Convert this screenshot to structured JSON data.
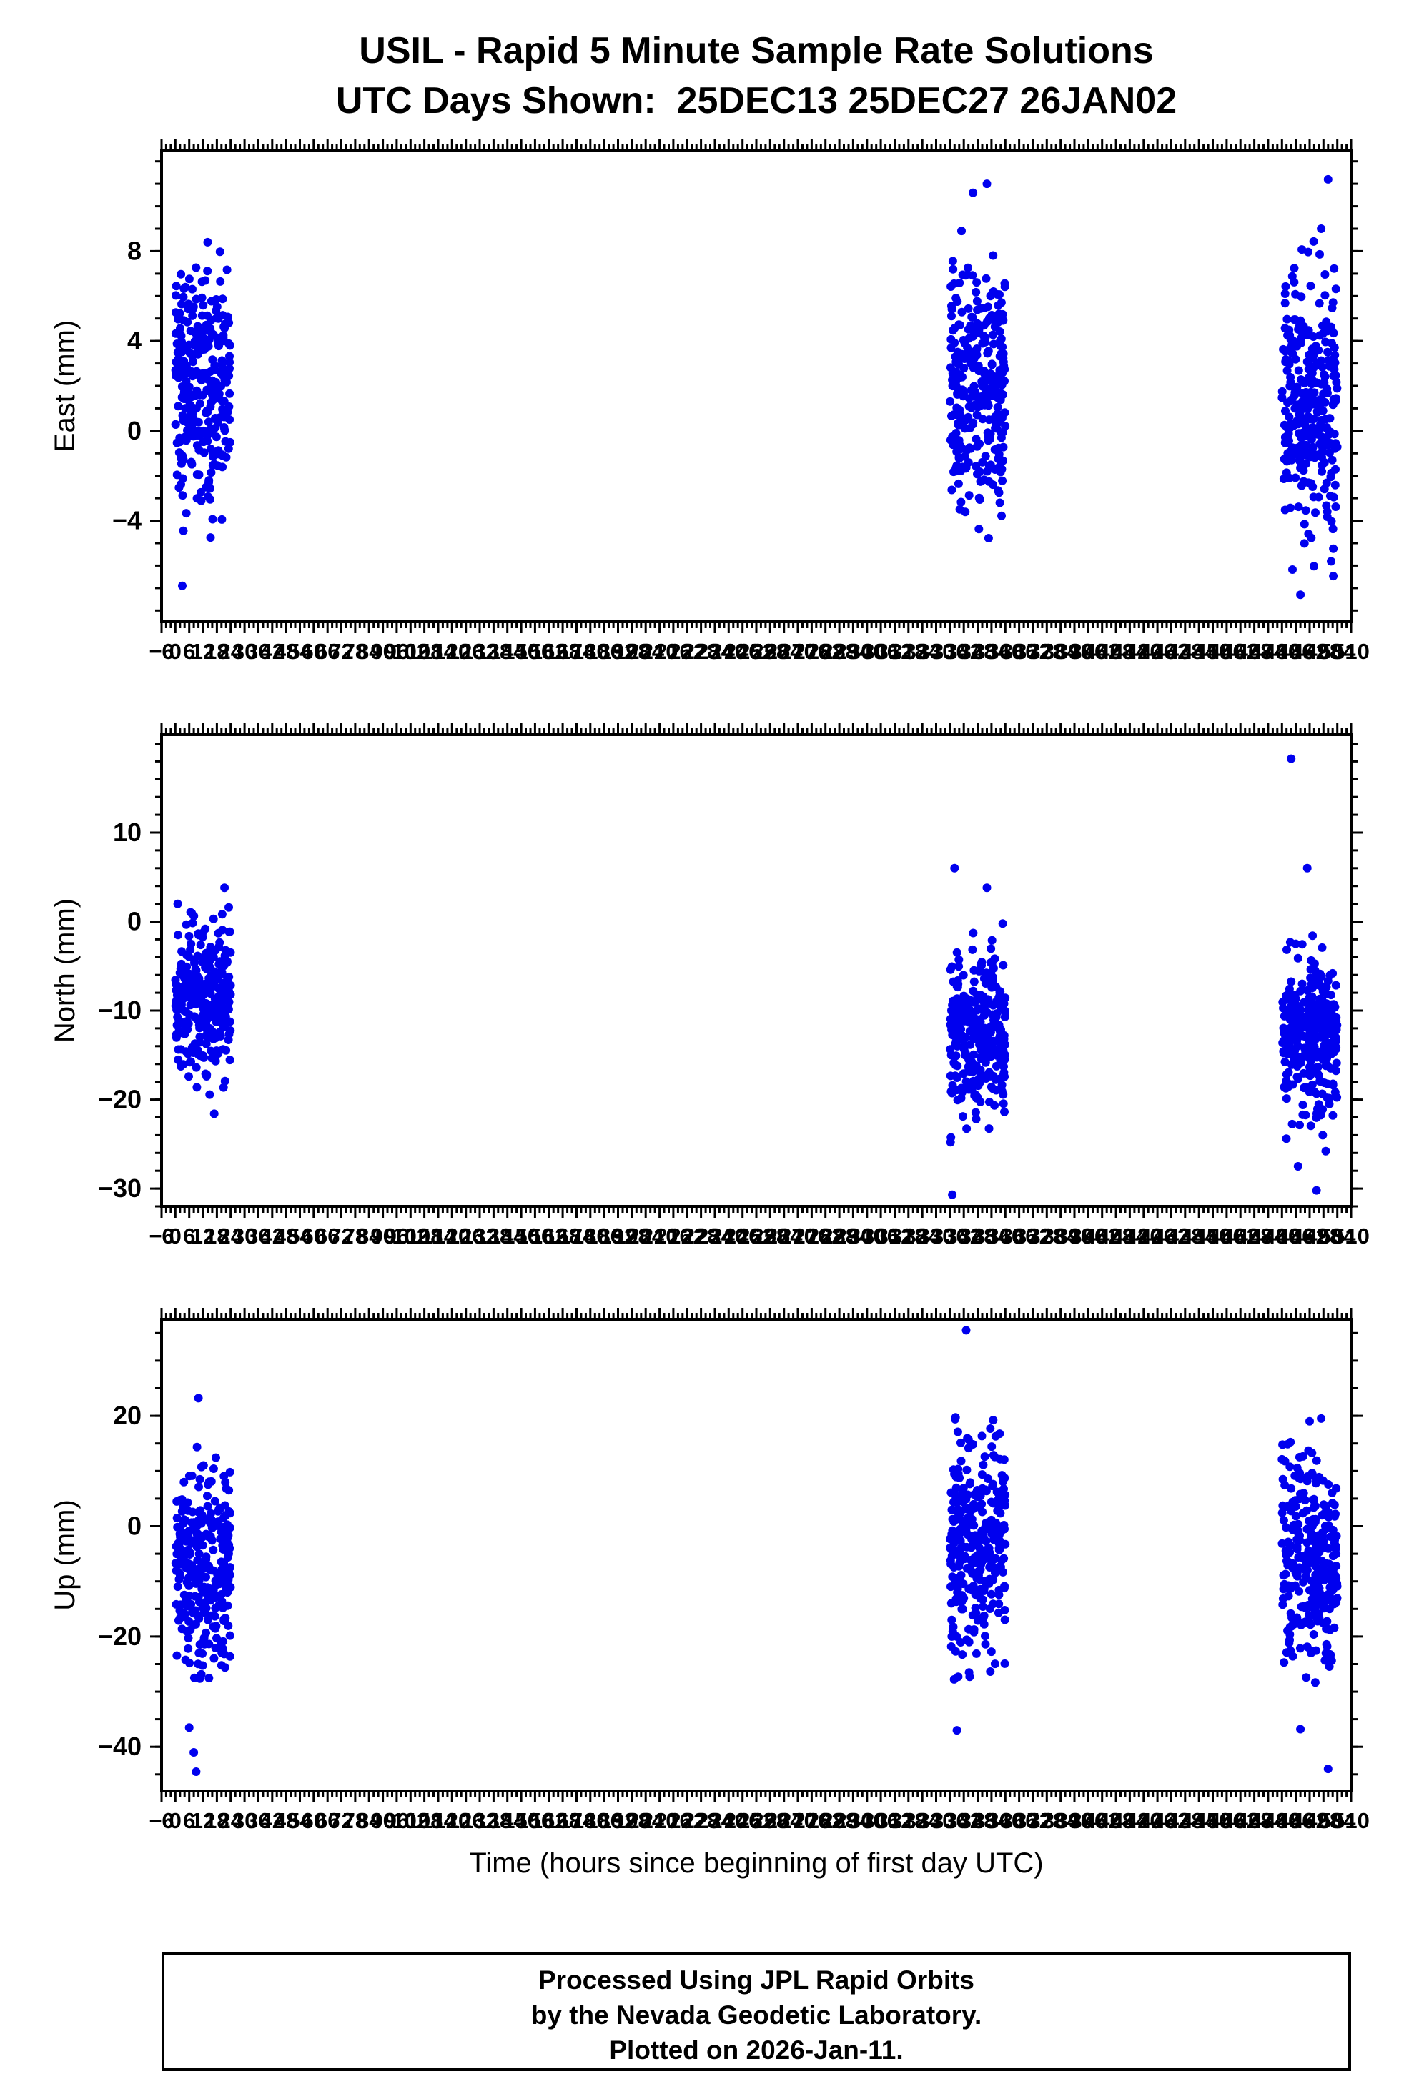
{
  "title": {
    "line1": "USIL - Rapid 5 Minute Sample Rate Solutions",
    "line2": "UTC Days Shown:  25DEC13 25DEC27 26JAN02"
  },
  "xaxis": {
    "label": "Time (hours since beginning of first day UTC)",
    "min": -6,
    "max": 510,
    "annot_step": 6,
    "minor_step": 2
  },
  "style": {
    "point_color": "#0000EE",
    "frame_color": "#000000"
  },
  "footer": {
    "line1": "Processed Using JPL Rapid Orbits",
    "line2": "by the Nevada Geodetic Laboratory.",
    "line3": "Plotted on 2026-Jan-11."
  },
  "chart_data": [
    {
      "type": "scatter",
      "name": "east",
      "ylabel": "East (mm)",
      "ylim": [
        -8.5,
        12.5
      ],
      "yticks": [
        -4,
        0,
        4,
        8
      ],
      "yminor": 1,
      "seed": 11,
      "clusters": [
        {
          "x": [
            0,
            24
          ],
          "n": 300,
          "mean": 2.0,
          "std": 2.6,
          "clip": [
            -7.2,
            8.6
          ]
        },
        {
          "x": [
            336,
            360
          ],
          "n": 300,
          "mean": 1.8,
          "std": 2.8,
          "clip": [
            -6.3,
            8.2
          ]
        },
        {
          "x": [
            480,
            504
          ],
          "n": 300,
          "mean": 1.4,
          "std": 2.9,
          "clip": [
            -7.4,
            9.3
          ]
        }
      ],
      "outliers": [
        [
          346,
          10.6
        ],
        [
          352,
          11.0
        ],
        [
          341,
          8.9
        ],
        [
          500,
          11.2
        ],
        [
          497,
          9.0
        ],
        [
          488,
          -7.3
        ],
        [
          14,
          8.4
        ],
        [
          3,
          -6.9
        ]
      ]
    },
    {
      "type": "scatter",
      "name": "north",
      "ylabel": "North (mm)",
      "ylim": [
        -32,
        21
      ],
      "yticks": [
        -30,
        -20,
        -10,
        0,
        10
      ],
      "yminor": 2,
      "seed": 22,
      "clusters": [
        {
          "x": [
            0,
            24
          ],
          "n": 300,
          "mean": -8.5,
          "std": 4.5,
          "clip": [
            -23.5,
            7.0
          ]
        },
        {
          "x": [
            336,
            360
          ],
          "n": 300,
          "mean": -12.5,
          "std": 4.6,
          "clip": [
            -26,
            1.5
          ]
        },
        {
          "x": [
            480,
            504
          ],
          "n": 300,
          "mean": -13.0,
          "std": 4.4,
          "clip": [
            -25,
            -1
          ]
        }
      ],
      "outliers": [
        [
          337,
          -30.7
        ],
        [
          338,
          6.0
        ],
        [
          352,
          3.8
        ],
        [
          484,
          18.3
        ],
        [
          491,
          6.0
        ],
        [
          486,
          -2.5
        ],
        [
          495,
          -30.2
        ],
        [
          487,
          -27.5
        ],
        [
          499,
          -25.8
        ]
      ]
    },
    {
      "type": "scatter",
      "name": "up",
      "ylabel": "Up (mm)",
      "ylim": [
        -48,
        37.5
      ],
      "yticks": [
        -40,
        -20,
        0,
        20
      ],
      "yminor": 5,
      "seed": 33,
      "clusters": [
        {
          "x": [
            0,
            24
          ],
          "n": 290,
          "mean": -8,
          "std": 9.5,
          "clip": [
            -30,
            15
          ]
        },
        {
          "x": [
            336,
            360
          ],
          "n": 290,
          "mean": -4,
          "std": 10.5,
          "clip": [
            -30,
            20
          ]
        },
        {
          "x": [
            480,
            504
          ],
          "n": 290,
          "mean": -7,
          "std": 9.5,
          "clip": [
            -30,
            16
          ]
        }
      ],
      "outliers": [
        [
          10,
          23.2
        ],
        [
          6,
          -36.5
        ],
        [
          8,
          -41
        ],
        [
          9,
          -44.5
        ],
        [
          343,
          35.5
        ],
        [
          339,
          -37
        ],
        [
          492,
          19
        ],
        [
          497,
          19.5
        ],
        [
          488,
          -36.8
        ],
        [
          500,
          -44
        ]
      ]
    }
  ]
}
